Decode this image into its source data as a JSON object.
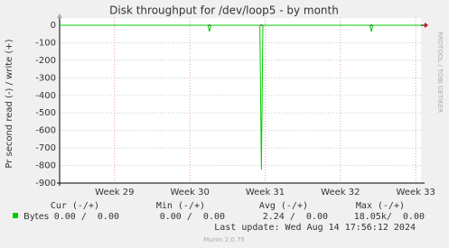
{
  "chart_data": {
    "type": "line",
    "title": "Disk throughput for /dev/loop5 - by month",
    "y_label": "Pr second read (-) / write (+)",
    "x": [
      28.27,
      30.24,
      30.26,
      30.28,
      30.93,
      30.95,
      30.97,
      32.39,
      32.41,
      32.43,
      33.07
    ],
    "series": [
      {
        "name": "Bytes",
        "color": "#00cc00",
        "values": [
          0,
          0,
          -36,
          0,
          0,
          -823,
          0,
          0,
          -36,
          0,
          0
        ]
      }
    ],
    "xlim": [
      28.27,
      33.07
    ],
    "xticks": [
      {
        "value": 29,
        "label": "Week 29"
      },
      {
        "value": 30,
        "label": "Week 30"
      },
      {
        "value": 31,
        "label": "Week 31"
      },
      {
        "value": 32,
        "label": "Week 32"
      },
      {
        "value": 33,
        "label": "Week 33"
      }
    ],
    "ylim": [
      -900,
      0
    ],
    "yticks": [
      0,
      -100,
      -200,
      -300,
      -400,
      -500,
      -600,
      -700,
      -800,
      -900
    ],
    "grid": true
  },
  "summary": {
    "headers": [
      "Cur (-/+)",
      "Min (-/+)",
      "Avg (-/+)",
      "Max (-/+)"
    ],
    "cells": [
      "0.00 /  0.00",
      "0.00 /  0.00",
      "2.24 /  0.00",
      "18.05k/  0.00"
    ],
    "last_update": "Last update: Wed Aug 14 17:56:12 2024"
  },
  "side_label": "RRDTOOL / TOBI OETIKER",
  "footer": "Munin 2.0.75"
}
